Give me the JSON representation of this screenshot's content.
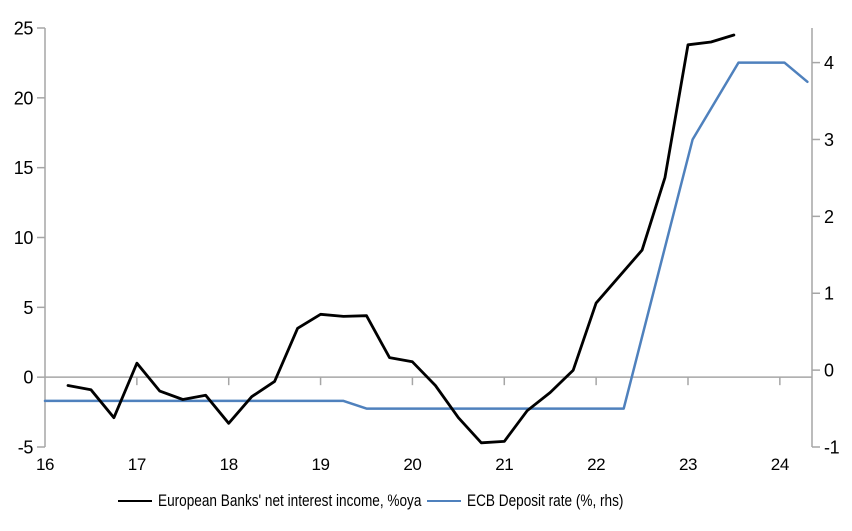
{
  "chart_data": {
    "type": "line",
    "title": "",
    "x_axis": {
      "range": [
        16,
        24.35
      ],
      "ticks": [
        16,
        17,
        18,
        19,
        20,
        21,
        22,
        23,
        24
      ]
    },
    "left_axis": {
      "range": [
        -5,
        25
      ],
      "ticks": [
        -5,
        0,
        5,
        10,
        15,
        20,
        25
      ]
    },
    "right_axis": {
      "range": [
        -1,
        4.45
      ],
      "ticks": [
        -1,
        0,
        1,
        2,
        3,
        4
      ]
    },
    "grid": "zero-line-only",
    "legend_position": "bottom",
    "series": [
      {
        "name": "European Banks' net interest income, %oya",
        "axis": "left",
        "color": "#000000",
        "width": 2.8,
        "points": [
          [
            16.25,
            -0.6
          ],
          [
            16.5,
            -0.9
          ],
          [
            16.75,
            -2.9
          ],
          [
            17.0,
            1.0
          ],
          [
            17.25,
            -1.0
          ],
          [
            17.5,
            -1.6
          ],
          [
            17.75,
            -1.3
          ],
          [
            18.0,
            -3.3
          ],
          [
            18.25,
            -1.4
          ],
          [
            18.5,
            -0.3
          ],
          [
            18.75,
            3.5
          ],
          [
            19.0,
            4.5
          ],
          [
            19.25,
            4.35
          ],
          [
            19.5,
            4.4
          ],
          [
            19.75,
            1.4
          ],
          [
            20.0,
            1.1
          ],
          [
            20.25,
            -0.6
          ],
          [
            20.5,
            -2.9
          ],
          [
            20.75,
            -4.7
          ],
          [
            21.0,
            -4.6
          ],
          [
            21.25,
            -2.4
          ],
          [
            21.5,
            -1.1
          ],
          [
            21.75,
            0.5
          ],
          [
            22.0,
            5.3
          ],
          [
            22.25,
            7.2
          ],
          [
            22.5,
            9.1
          ],
          [
            22.75,
            14.3
          ],
          [
            23.0,
            23.8
          ],
          [
            23.25,
            24.0
          ],
          [
            23.5,
            24.5
          ]
        ]
      },
      {
        "name": "ECB Deposit rate (%, rhs)",
        "axis": "right",
        "color": "#4F81BD",
        "width": 2.5,
        "points": [
          [
            16.0,
            -0.4
          ],
          [
            19.25,
            -0.4
          ],
          [
            19.5,
            -0.5
          ],
          [
            22.3,
            -0.5
          ],
          [
            23.05,
            3.0
          ],
          [
            23.55,
            4.0
          ],
          [
            24.05,
            4.0
          ],
          [
            24.3,
            3.75
          ]
        ]
      }
    ],
    "axis_color": "#A6A6A6"
  }
}
